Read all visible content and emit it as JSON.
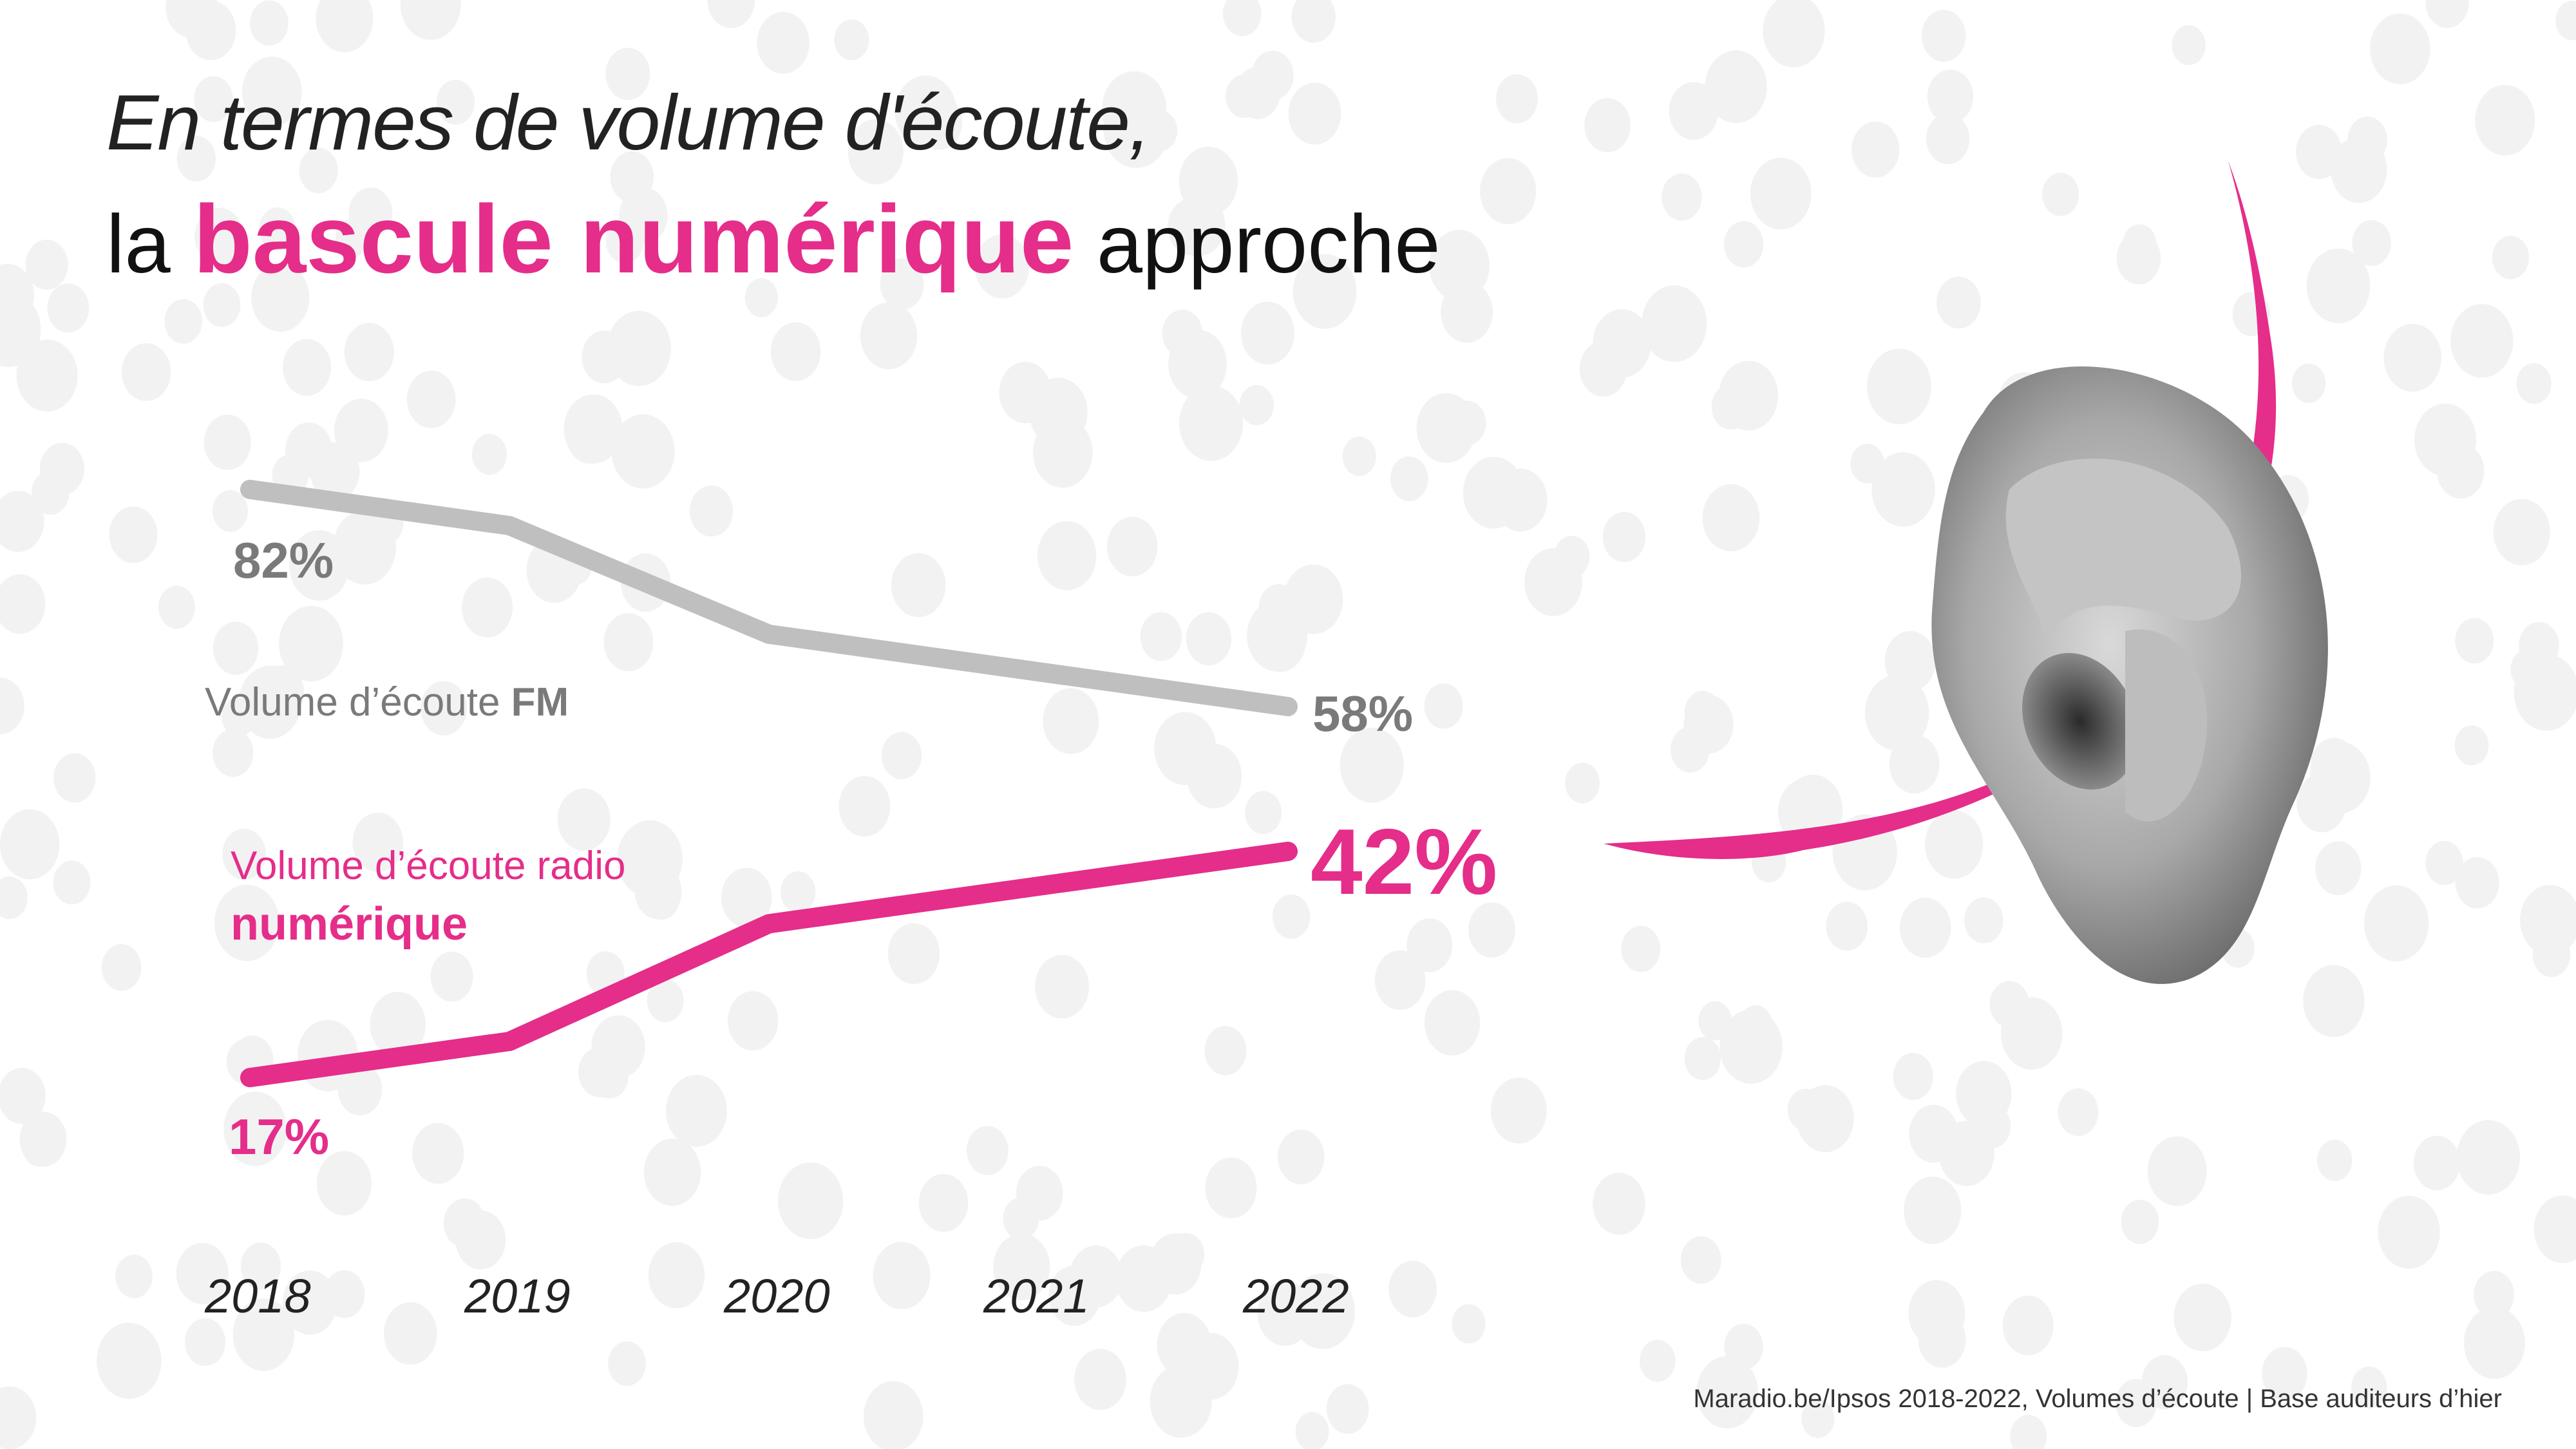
{
  "title": {
    "line1": "En termes de volume d'écoute,",
    "line2_prefix": "la",
    "line2_highlight": "bascule numérique",
    "line2_suffix": "approche"
  },
  "colors": {
    "accent": "#e52d8a",
    "fm": "#bfbfbf",
    "fm_text": "#7a7a7a",
    "dots": "#f2f2f2"
  },
  "chart_data": {
    "type": "line",
    "title": "En termes de volume d'écoute, la bascule numérique approche",
    "x": [
      "2018",
      "2019",
      "2020",
      "2021",
      "2022"
    ],
    "xlabel": "",
    "ylabel": "",
    "ylim": [
      0,
      100
    ],
    "grid": false,
    "series": [
      {
        "name": "Volume d’écoute FM",
        "name_prefix": "Volume d’écoute",
        "name_bold": "FM",
        "values": [
          82,
          78,
          66,
          62,
          58
        ],
        "start_label": "82%",
        "end_label": "58%"
      },
      {
        "name": "Volume d’écoute radio numérique",
        "name_prefix": "Volume d’écoute radio",
        "name_bold": "numérique",
        "values": [
          17,
          21,
          34,
          38,
          42
        ],
        "start_label": "17%",
        "end_label": "42%"
      }
    ]
  },
  "footer": "Maradio.be/Ipsos  2018-2022, Volumes d’écoute | Base auditeurs d’hier"
}
